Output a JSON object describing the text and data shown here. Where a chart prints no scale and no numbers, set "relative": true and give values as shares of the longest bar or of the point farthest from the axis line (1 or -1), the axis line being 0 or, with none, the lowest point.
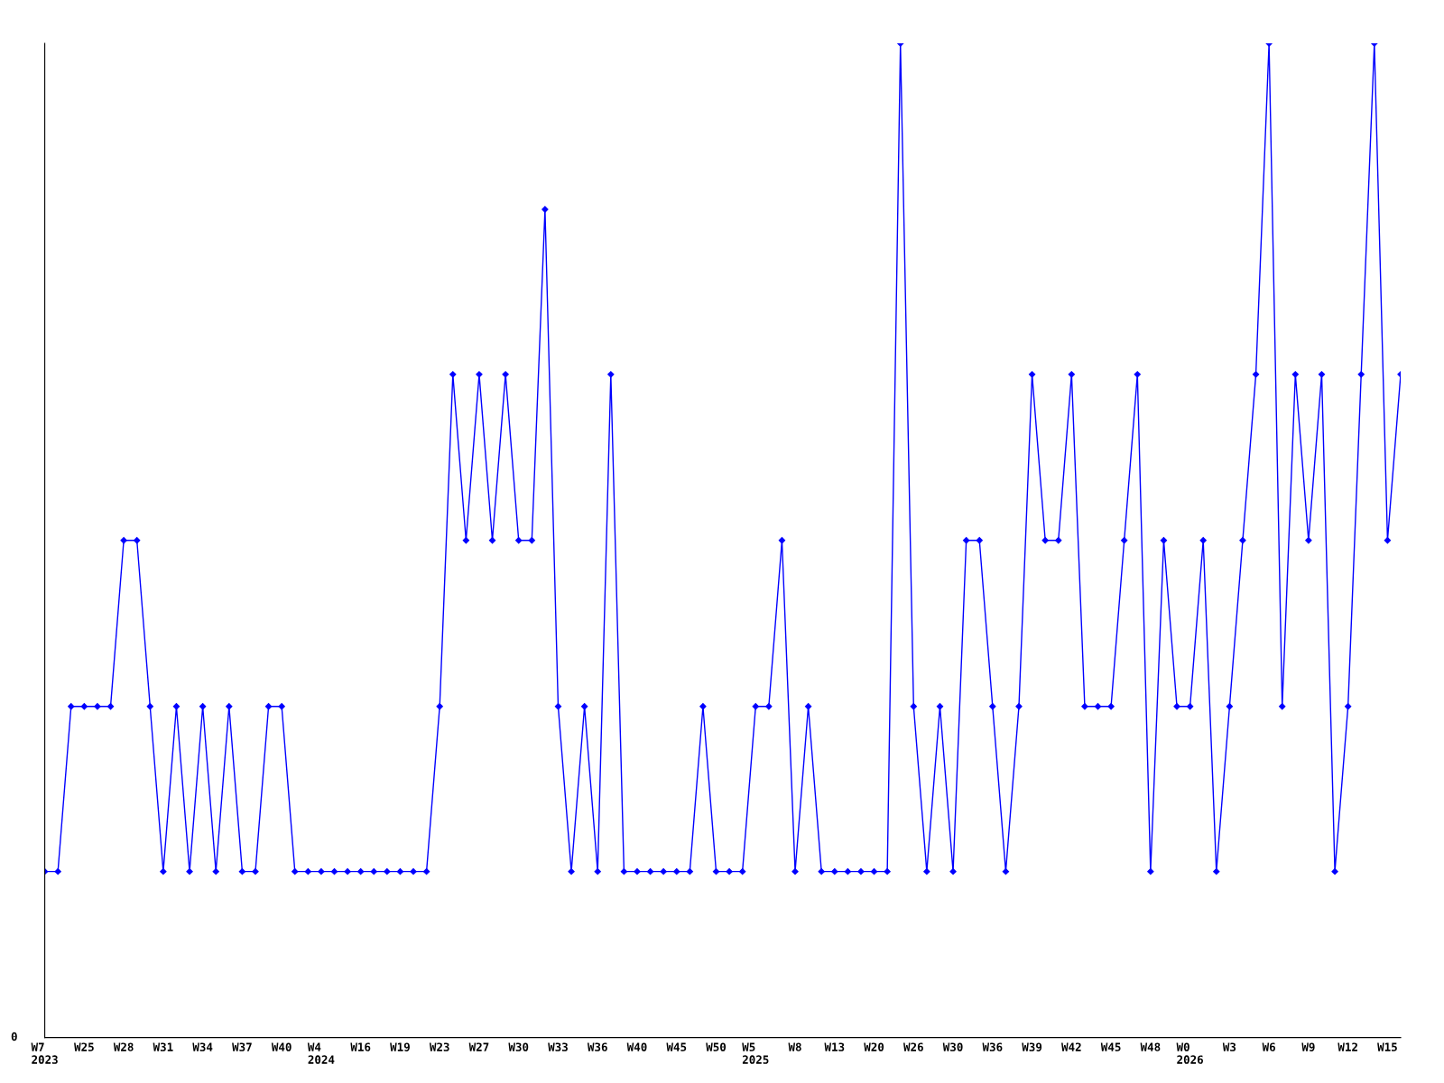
{
  "chart_data": {
    "type": "line",
    "relative": true,
    "marker": "diamond",
    "line_style": "solid",
    "grid": false,
    "legend": false,
    "categories": [
      "W7\n2023",
      null,
      null,
      "W25",
      null,
      null,
      "W28",
      null,
      null,
      "W31",
      null,
      null,
      "W34",
      null,
      null,
      "W37",
      null,
      null,
      "W40",
      null,
      null,
      "W4\n2024",
      null,
      null,
      "W16",
      null,
      null,
      "W19",
      null,
      null,
      "W23",
      null,
      null,
      "W27",
      null,
      null,
      "W30",
      null,
      null,
      "W33",
      null,
      null,
      "W36",
      null,
      null,
      "W40",
      null,
      null,
      "W45",
      null,
      null,
      "W50",
      null,
      null,
      "W5\n2025",
      null,
      null,
      "W8",
      null,
      null,
      "W13",
      null,
      null,
      "W20",
      null,
      null,
      "W26",
      null,
      null,
      "W30",
      null,
      null,
      "W36",
      null,
      null,
      "W39",
      null,
      null,
      "W42",
      null,
      null,
      "W45",
      null,
      null,
      "W48",
      null,
      null,
      "W0\n2026",
      null,
      null,
      "W3",
      null,
      null,
      "W6",
      null,
      null,
      "W9",
      null,
      null,
      "W12",
      null,
      null,
      "W15",
      null
    ],
    "series": [
      {
        "color": "#0000ff",
        "values": [
          0.167,
          0.167,
          0.333,
          0.333,
          0.333,
          0.333,
          0.5,
          0.5,
          0.333,
          0.167,
          0.333,
          0.167,
          0.333,
          0.167,
          0.333,
          0.167,
          0.167,
          0.333,
          0.333,
          0.167,
          0.167,
          0.167,
          0.167,
          0.167,
          0.167,
          0.167,
          0.167,
          0.167,
          0.167,
          0.167,
          0.333,
          0.667,
          0.5,
          0.667,
          0.5,
          0.667,
          0.5,
          0.5,
          0.833,
          0.333,
          0.167,
          0.333,
          0.167,
          0.667,
          0.167,
          0.167,
          0.167,
          0.167,
          0.167,
          0.167,
          0.333,
          0.167,
          0.167,
          0.167,
          0.333,
          0.333,
          0.5,
          0.167,
          0.333,
          0.167,
          0.167,
          0.167,
          0.167,
          0.167,
          0.167,
          1,
          0.333,
          0.167,
          0.333,
          0.167,
          0.5,
          0.5,
          0.333,
          0.167,
          0.333,
          0.667,
          0.5,
          0.5,
          0.667,
          0.333,
          0.333,
          0.333,
          0.5,
          0.667,
          0.167,
          0.5,
          0.333,
          0.333,
          0.5,
          0.167,
          0.333,
          0.5,
          0.667,
          1,
          0.333,
          0.667,
          0.5,
          0.667,
          0.167,
          0.333,
          0.667,
          1,
          0.5,
          0.667
        ]
      }
    ],
    "annotations": [
      "0"
    ]
  }
}
